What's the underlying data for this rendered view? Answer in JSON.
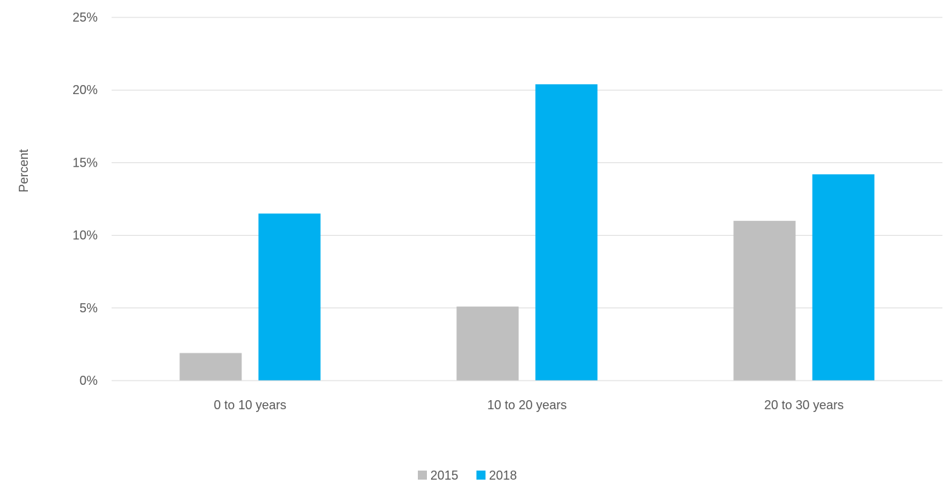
{
  "chart_data": {
    "type": "bar",
    "title": "",
    "xlabel": "",
    "ylabel": "Percent",
    "categories": [
      "0 to 10 years",
      "10 to 20 years",
      "20 to 30 years"
    ],
    "series": [
      {
        "name": "2015",
        "color": "#bfbfbf",
        "values": [
          1.9,
          5.1,
          11.0
        ]
      },
      {
        "name": "2018",
        "color": "#00b0f0",
        "values": [
          11.5,
          20.4,
          14.2
        ]
      }
    ],
    "ylim": [
      0,
      25
    ],
    "yticks": [
      0,
      5,
      10,
      15,
      20,
      25
    ],
    "ytick_labels": [
      "0%",
      "5%",
      "10%",
      "15%",
      "20%",
      "25%"
    ],
    "grid": true,
    "gridline_color": "#d9d9d9",
    "legend_position": "bottom"
  }
}
